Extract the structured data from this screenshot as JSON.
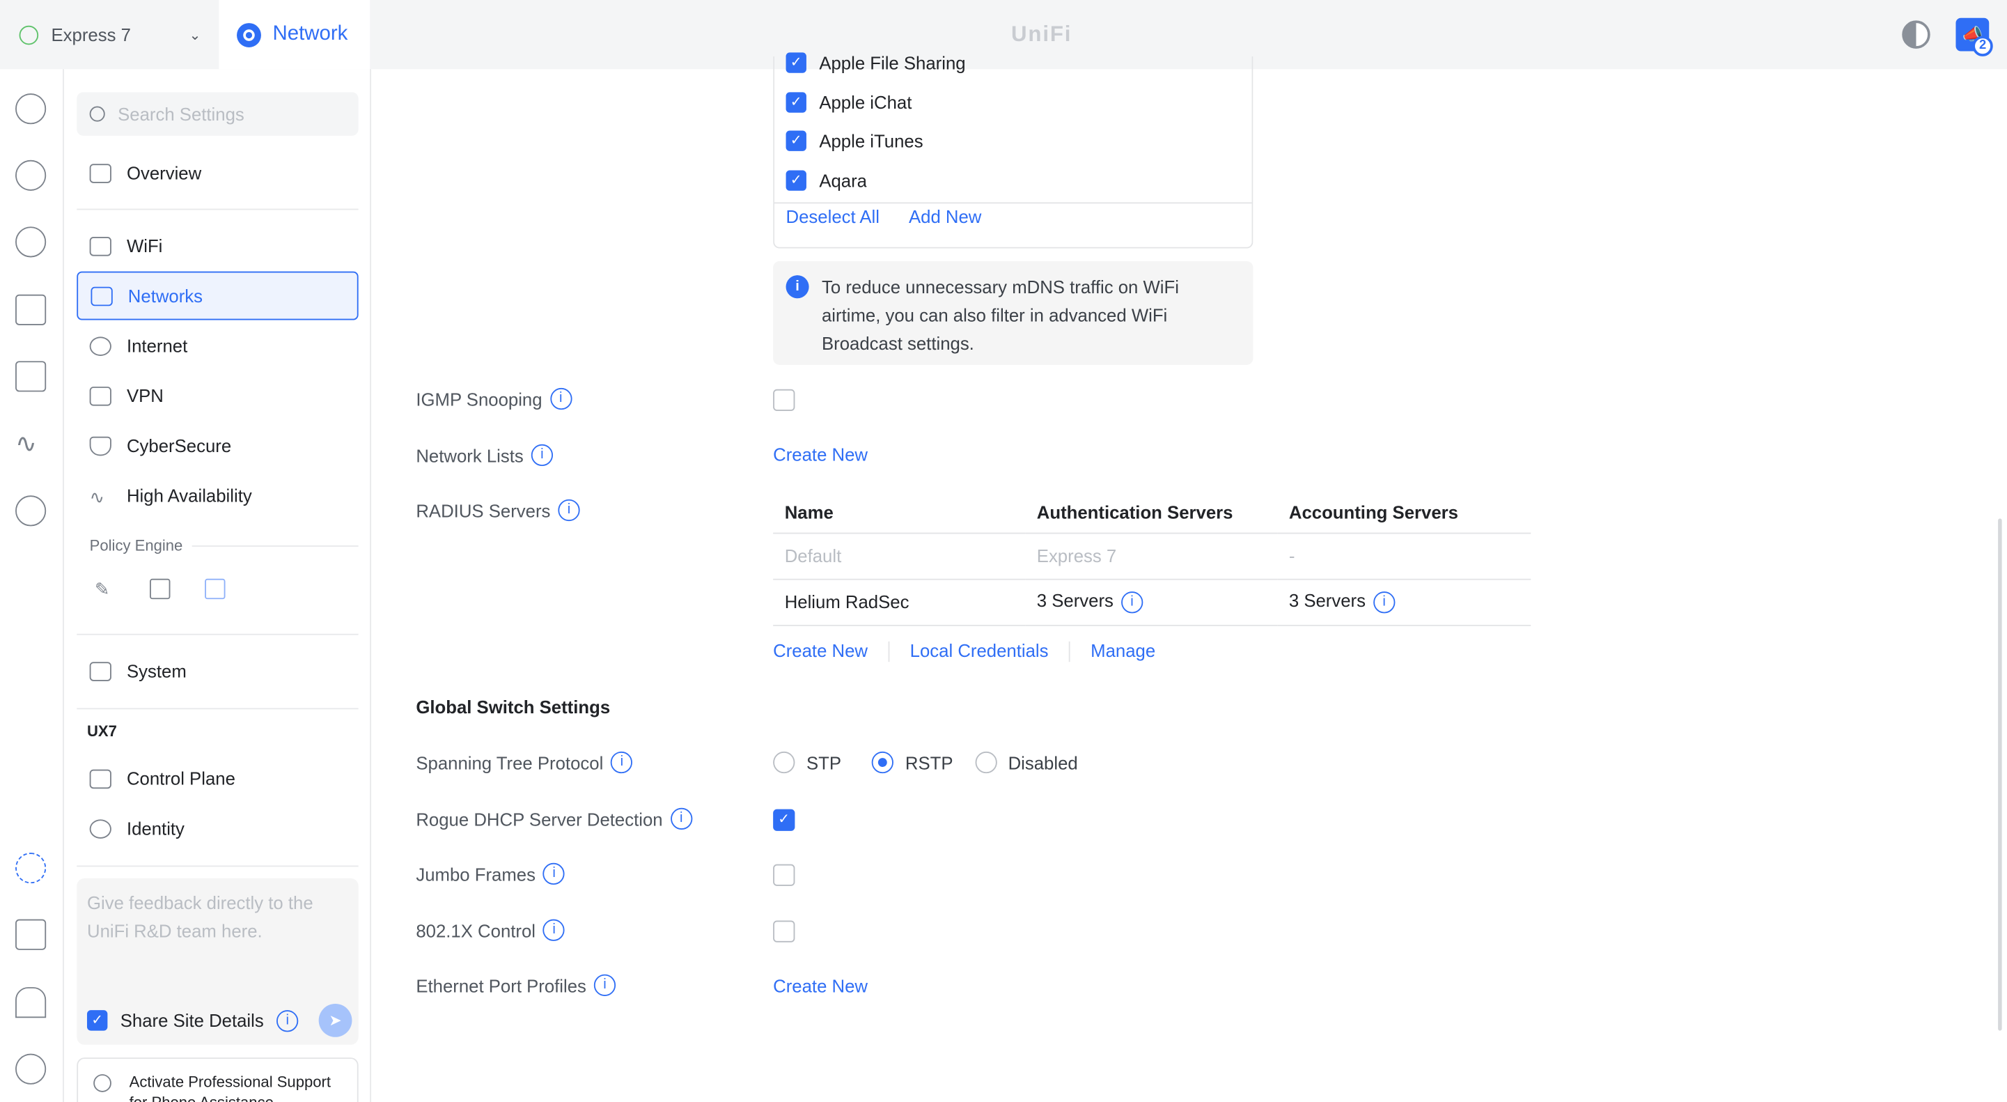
{
  "header": {
    "site": "Express 7",
    "app": "Network",
    "logo": "UniFi",
    "notification_count": "2"
  },
  "sidebar": {
    "search_placeholder": "Search Settings",
    "items": [
      {
        "label": "Overview"
      },
      {
        "label": "WiFi"
      },
      {
        "label": "Networks"
      },
      {
        "label": "Internet"
      },
      {
        "label": "VPN"
      },
      {
        "label": "CyberSecure"
      },
      {
        "label": "High Availability"
      }
    ],
    "policy_engine": "Policy Engine",
    "system": "System",
    "device_group": "UX7",
    "device_items": [
      {
        "label": "Control Plane"
      },
      {
        "label": "Identity"
      }
    ],
    "feedback_placeholder": "Give feedback directly to the UniFi R&D team here.",
    "share_site_details": "Share Site Details",
    "support": "Activate Professional Support for Phone Assistance"
  },
  "main": {
    "mdns_list": [
      "Apple File Sharing",
      "Apple iChat",
      "Apple iTunes",
      "Aqara"
    ],
    "deselect_all": "Deselect All",
    "add_new": "Add New",
    "mdns_note": "To reduce unnecessary mDNS traffic on WiFi airtime, you can also filter in advanced WiFi Broadcast settings.",
    "igmp_snooping": "IGMP Snooping",
    "network_lists": "Network Lists",
    "create_new": "Create New",
    "radius_servers": "RADIUS Servers",
    "radius_table": {
      "headers": [
        "Name",
        "Authentication Servers",
        "Accounting Servers"
      ],
      "rows": [
        [
          "Default",
          "Express 7",
          "-"
        ],
        [
          "Helium RadSec",
          "3 Servers",
          "3 Servers"
        ]
      ]
    },
    "local_credentials": "Local Credentials",
    "manage": "Manage",
    "global_switch_settings": "Global Switch Settings",
    "stp_label": "Spanning Tree Protocol",
    "stp_options": [
      "STP",
      "RSTP",
      "Disabled"
    ],
    "stp_selected": "RSTP",
    "rogue_dhcp": "Rogue DHCP Server Detection",
    "jumbo_frames": "Jumbo Frames",
    "dot1x": "802.1X Control",
    "ethernet_port_profiles": "Ethernet Port Profiles"
  }
}
